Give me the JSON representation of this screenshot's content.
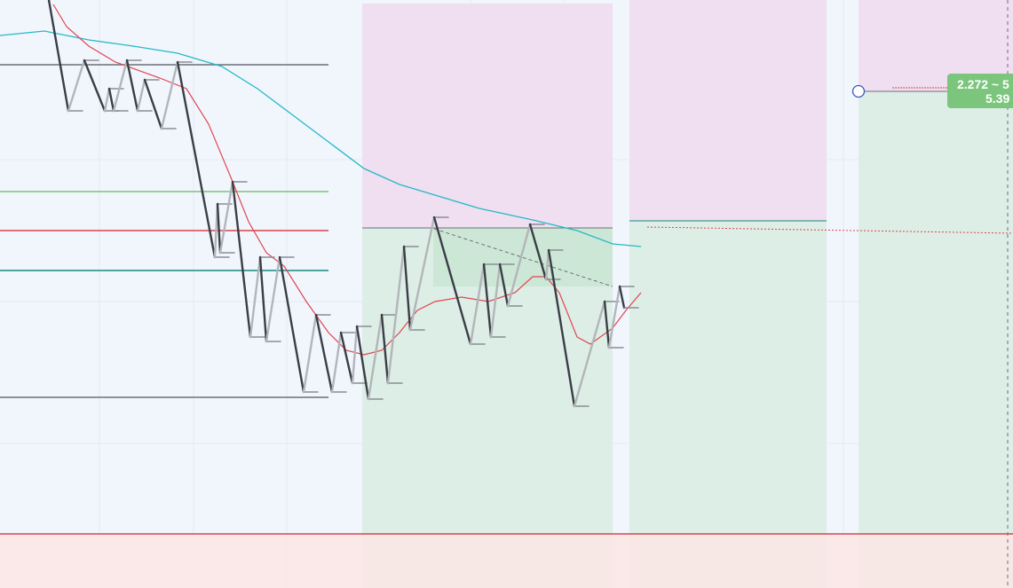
{
  "label": {
    "line1": "2.272 ~ 5",
    "line2": "5.39"
  }
}
